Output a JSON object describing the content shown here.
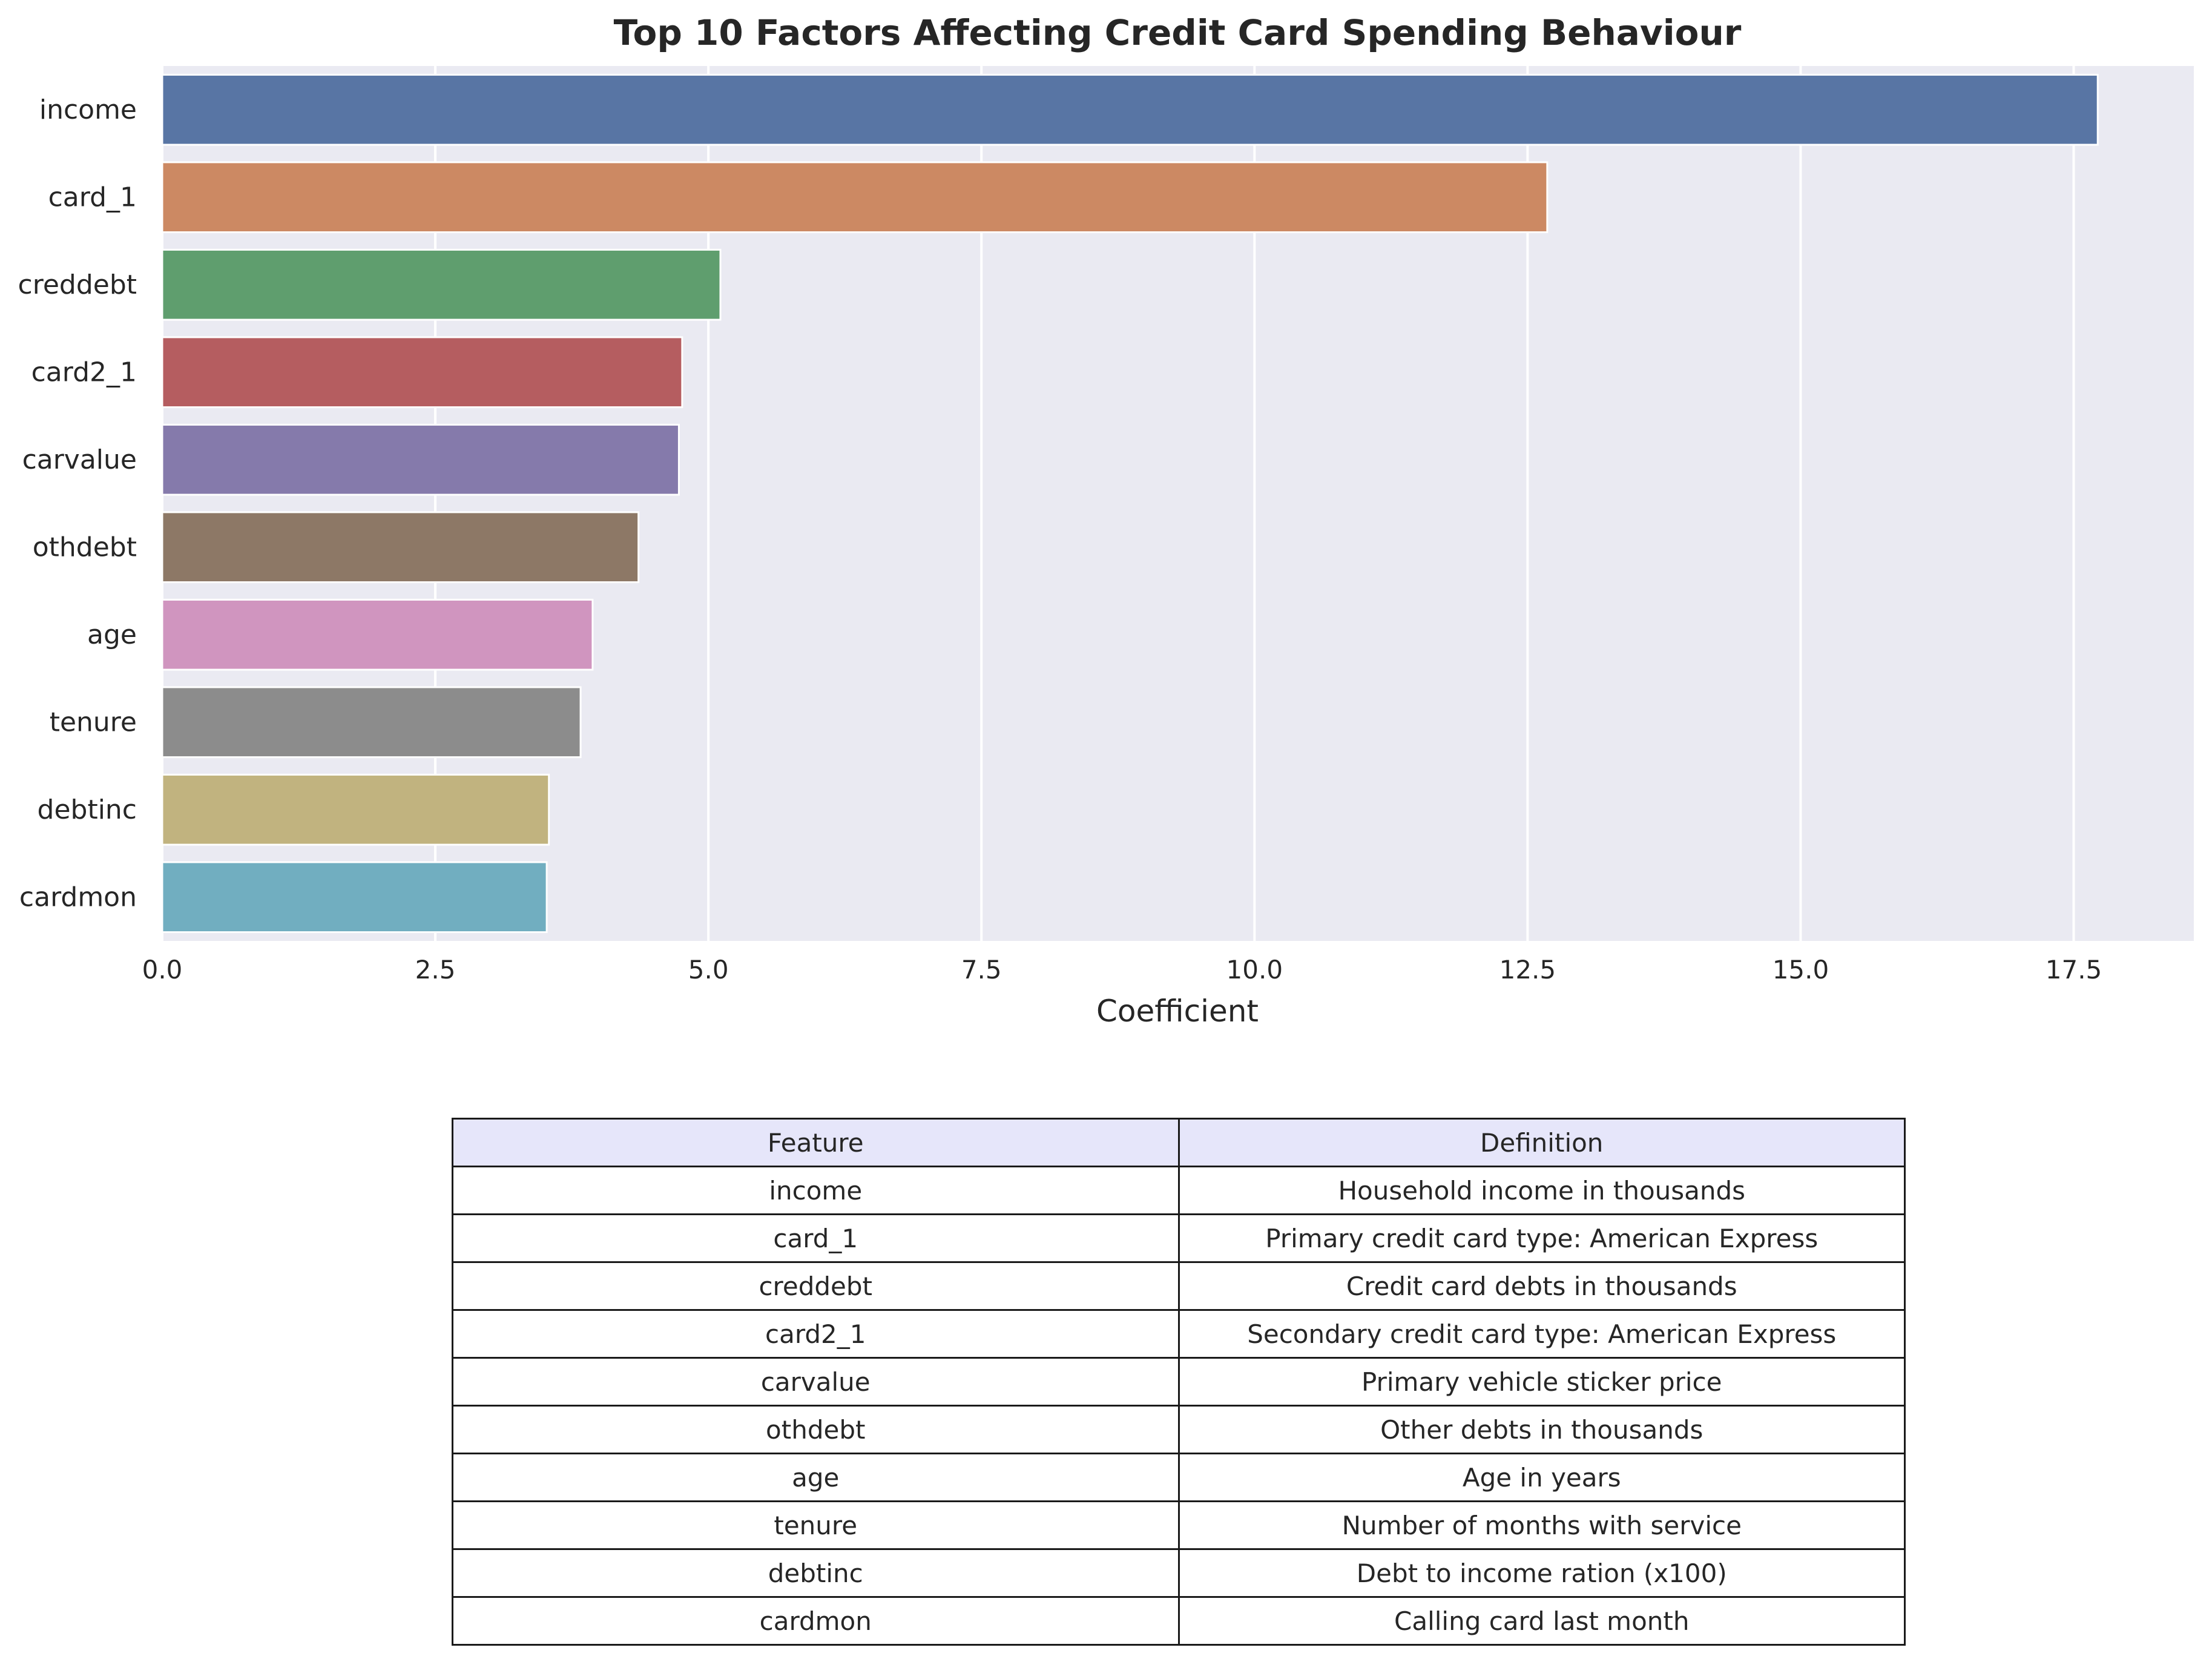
{
  "chart_data": {
    "type": "bar",
    "orientation": "horizontal",
    "title": "Top 10 Factors Affecting Credit Card Spending Behaviour",
    "xlabel": "Coefficient",
    "ylabel": "",
    "categories": [
      "income",
      "card_1",
      "creddebt",
      "card2_1",
      "carvalue",
      "othdebt",
      "age",
      "tenure",
      "debtinc",
      "cardmon"
    ],
    "values": [
      17.72,
      12.68,
      5.11,
      4.76,
      4.73,
      4.36,
      3.94,
      3.83,
      3.54,
      3.52
    ],
    "colors": [
      "#5875a4",
      "#cc8963",
      "#5f9e6e",
      "#b55d60",
      "#857aab",
      "#8d7866",
      "#d095bf",
      "#8c8c8c",
      "#c1b37f",
      "#71aec0"
    ],
    "xlim": [
      0,
      18.6
    ],
    "xticks": [
      0.0,
      2.5,
      5.0,
      7.5,
      10.0,
      12.5,
      15.0,
      17.5
    ],
    "xtick_labels": [
      "0.0",
      "2.5",
      "5.0",
      "7.5",
      "10.0",
      "12.5",
      "15.0",
      "17.5"
    ],
    "grid": true,
    "background": "#eaeaf2",
    "grid_color": "#ffffff"
  },
  "table": {
    "headers": [
      "Feature",
      "Definition"
    ],
    "header_color": "#e6e6fa",
    "rows": [
      [
        "income",
        "Household income in thousands"
      ],
      [
        "card_1",
        "Primary credit card type: American Express"
      ],
      [
        "creddebt",
        "Credit card debts in thousands"
      ],
      [
        "card2_1",
        "Secondary credit card type: American Express"
      ],
      [
        "carvalue",
        "Primary vehicle sticker price"
      ],
      [
        "othdebt",
        "Other debts in thousands"
      ],
      [
        "age",
        "Age in years"
      ],
      [
        "tenure",
        "Number of months with service"
      ],
      [
        "debtinc",
        "Debt to income ration (x100)"
      ],
      [
        "cardmon",
        "Calling card last month"
      ]
    ]
  }
}
